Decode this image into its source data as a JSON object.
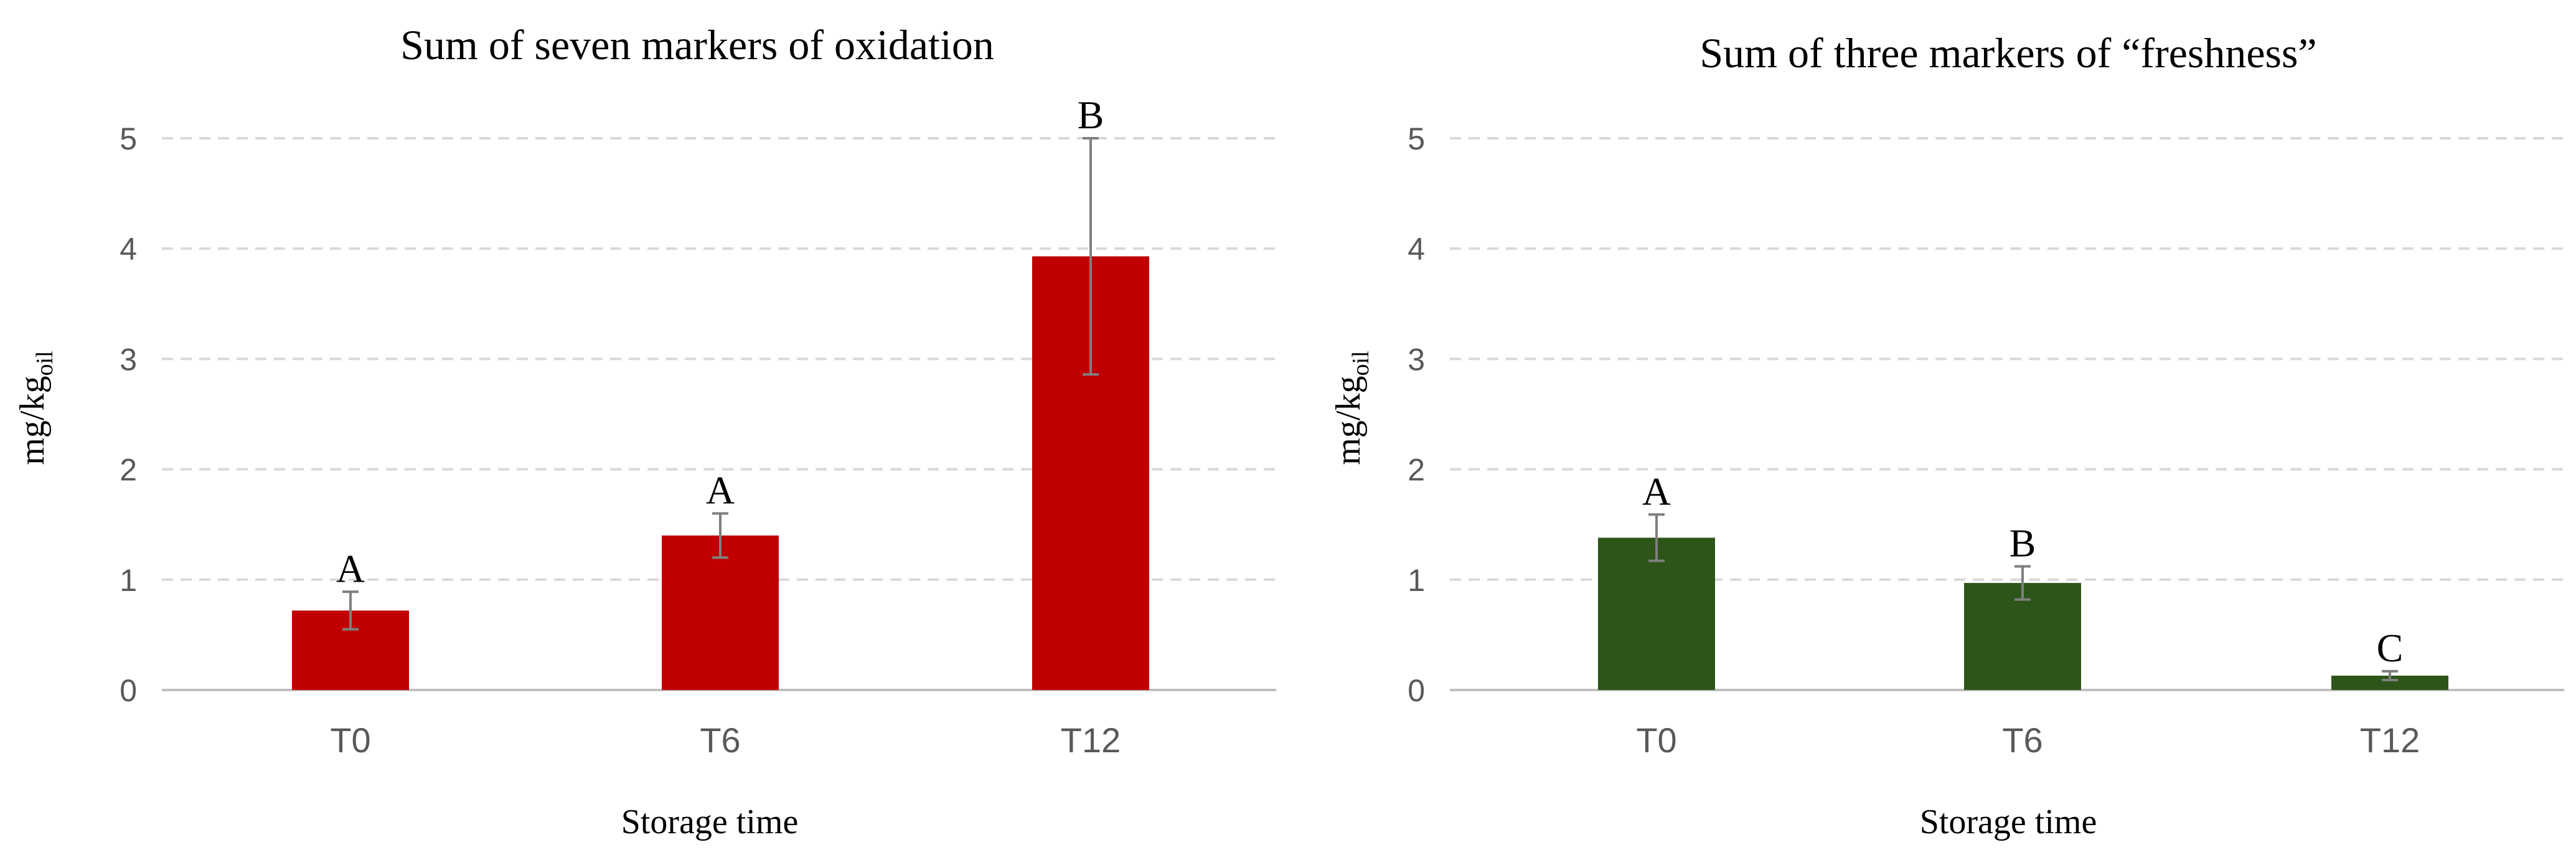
{
  "colors": {
    "oxidation_bar": "#C00000",
    "freshness_bar": "#2D5519",
    "grid": "#D9D9D9",
    "axis": "#BFBFBF",
    "error_bar": "#7F7F7F",
    "tick_text": "#595959",
    "title_text": "#000000"
  },
  "chart_data": [
    {
      "type": "bar",
      "title": "Sum of seven markers of oxidation",
      "xlabel": "Storage time",
      "ylabel_main": "mg/kg",
      "ylabel_sub": "oil",
      "categories": [
        "T0",
        "T6",
        "T12"
      ],
      "values": [
        0.72,
        1.4,
        3.93
      ],
      "errors": [
        0.17,
        0.2,
        1.07
      ],
      "letters": [
        "A",
        "A",
        "B"
      ],
      "ylim": [
        0,
        5
      ],
      "yticks": [
        "0",
        "1",
        "2",
        "3",
        "4",
        "5"
      ],
      "grid": true
    },
    {
      "type": "bar",
      "title": "Sum of three markers of “freshness”",
      "xlabel": "Storage time",
      "ylabel_main": "mg/kg",
      "ylabel_sub": "oil",
      "categories": [
        "T0",
        "T6",
        "T12"
      ],
      "values": [
        1.38,
        0.97,
        0.13
      ],
      "errors": [
        0.21,
        0.15,
        0.04
      ],
      "letters": [
        "A",
        "B",
        "C"
      ],
      "ylim": [
        0,
        5
      ],
      "yticks": [
        "0",
        "1",
        "2",
        "3",
        "4",
        "5"
      ],
      "grid": true
    }
  ]
}
